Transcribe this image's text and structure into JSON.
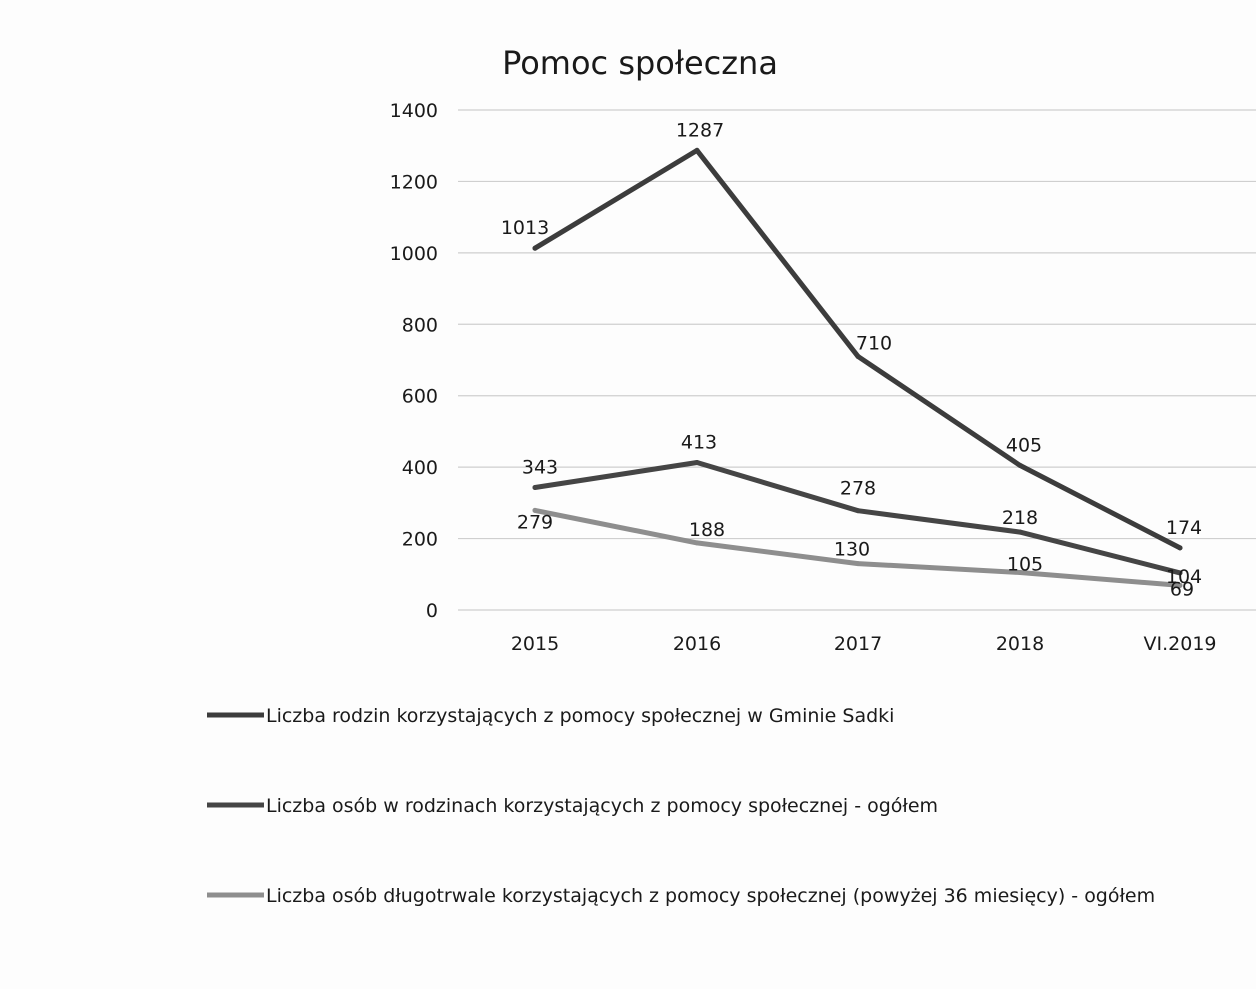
{
  "chart_data": {
    "type": "line",
    "title": "Pomoc społeczna",
    "xlabel": "",
    "ylabel": "",
    "categories": [
      "2015",
      "2016",
      "2017",
      "2018",
      "VI.2019"
    ],
    "ylim": [
      0,
      1400
    ],
    "yticks": [
      0,
      200,
      400,
      600,
      800,
      1000,
      1200,
      1400
    ],
    "grid": true,
    "legend_position": "bottom",
    "series": [
      {
        "name": "Liczba rodzin korzystających z pomocy społecznej w Gminie Sadki",
        "values": [
          1013,
          1287,
          710,
          405,
          174
        ],
        "color": "#3c3c3c"
      },
      {
        "name": "Liczba osób w rodzinach korzystających z pomocy społecznej - ogółem",
        "values": [
          343,
          413,
          278,
          218,
          104
        ],
        "color": "#454545"
      },
      {
        "name": "Liczba osób długotrwale korzystających z pomocy społecznej (powyżej 36 miesięcy) - ogółem",
        "values": [
          279,
          188,
          130,
          105,
          69
        ],
        "color": "#8e8e8e"
      }
    ]
  }
}
